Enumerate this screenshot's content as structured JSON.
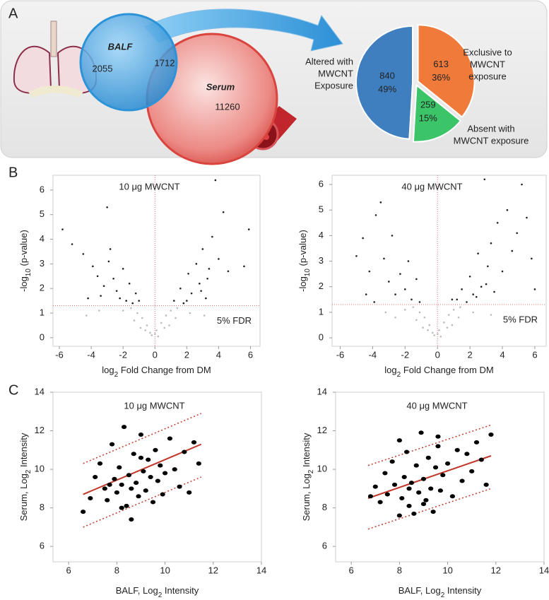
{
  "panel_labels": [
    "A",
    "B",
    "C"
  ],
  "chart_data": [
    {
      "type": "venn",
      "sets": [
        {
          "name": "BALF",
          "value": 2055,
          "color": "#2d93d8"
        },
        {
          "name": "Serum",
          "value": 11260,
          "color": "#d9443e"
        }
      ],
      "intersection": 1712
    },
    {
      "type": "pie",
      "categories": [
        [
          "Altered with",
          "MWCNT",
          "Exposure"
        ],
        [
          "Exclusive to",
          "MWCNT",
          "exposure"
        ],
        [
          "Absent with",
          "MWCNT exposure"
        ]
      ],
      "values": [
        840,
        613,
        259
      ],
      "percent_labels": [
        "49%",
        "36%",
        "15%"
      ],
      "colors": [
        "#3f7fc0",
        "#f07a3a",
        "#3cc468"
      ]
    },
    {
      "type": "volcano",
      "title": "10 μg MWCNT",
      "xlabel": [
        "log",
        "2",
        " Fold Change from DM"
      ],
      "ylabel": [
        "-log",
        "10",
        " (p-value)"
      ],
      "xlim": [
        -6.4,
        6.6
      ],
      "ylim": [
        -0.35,
        6.6
      ],
      "xticks": [
        -6,
        -4,
        -2,
        0,
        2,
        4,
        6
      ],
      "yticks": [
        0,
        1,
        2,
        3,
        4,
        5,
        6
      ],
      "threshold": {
        "y": 1.3,
        "label": "5% FDR"
      },
      "vline": 0,
      "series": [
        {
          "color": "#222222",
          "x": [
            -5.8,
            -5.2,
            -4.5,
            -3.9,
            -3.6,
            -3.2,
            -3.0,
            -2.8,
            -2.6,
            -2.4,
            -2.2,
            -2.0,
            -1.8,
            -1.6,
            -1.4,
            -1.2,
            -3.4,
            -2.9,
            -4.2,
            -1.0,
            1.2,
            1.6,
            1.8,
            2.1,
            2.3,
            2.6,
            2.8,
            3.0,
            3.2,
            3.4,
            3.6,
            3.8,
            4.0,
            4.3,
            4.6,
            5.6,
            5.9,
            2.0,
            2.9,
            3.3
          ],
          "y": [
            4.4,
            3.8,
            3.4,
            2.9,
            2.5,
            2.1,
            5.3,
            3.6,
            2.4,
            1.9,
            1.6,
            2.8,
            1.5,
            2.2,
            1.4,
            1.8,
            1.7,
            3.1,
            1.6,
            1.5,
            1.5,
            2.0,
            1.4,
            2.6,
            1.8,
            3.0,
            2.2,
            3.6,
            1.6,
            2.8,
            4.1,
            6.4,
            3.2,
            5.1,
            2.7,
            2.9,
            4.4,
            1.5,
            1.9,
            2.4
          ]
        },
        {
          "color": "#bbbbbb",
          "x": [
            -0.2,
            0.1,
            -0.5,
            0.4,
            -0.8,
            0.7,
            -1.1,
            1.0,
            -0.3,
            0.2,
            -1.5,
            1.4,
            -0.6,
            0.6,
            -2.0,
            2.2,
            -3.5,
            3.1,
            0.0,
            -0.9,
            0.9,
            -1.3,
            1.3,
            -4.3
          ],
          "y": [
            0.1,
            0.3,
            0.5,
            0.6,
            0.8,
            0.9,
            1.0,
            1.1,
            0.2,
            0.05,
            1.2,
            1.2,
            0.3,
            0.4,
            1.1,
            1.0,
            1.1,
            0.9,
            0.15,
            0.4,
            0.5,
            0.7,
            0.8,
            0.9
          ]
        }
      ]
    },
    {
      "type": "volcano",
      "title": "40 μg MWCNT",
      "xlabel": [
        "log",
        "2",
        " Fold Change from DM"
      ],
      "ylabel": [
        "-log",
        "10",
        " (p-value)"
      ],
      "xlim": [
        -6.5,
        6.7
      ],
      "ylim": [
        -0.33,
        6.36
      ],
      "xticks": [
        -6,
        -4,
        -2,
        0,
        2,
        4,
        6
      ],
      "yticks": [
        0,
        1,
        2,
        3,
        4,
        5,
        6
      ],
      "threshold": {
        "y": 1.3,
        "label": "5% FDR"
      },
      "vline": 0,
      "series": [
        {
          "color": "#222222",
          "x": [
            -5.0,
            -4.6,
            -4.2,
            -3.8,
            -3.5,
            -3.3,
            -3.0,
            -2.8,
            -2.6,
            -2.3,
            -2.0,
            -1.8,
            -1.6,
            -1.3,
            -1.1,
            -4.4,
            -3.9,
            1.2,
            1.5,
            1.8,
            2.0,
            2.2,
            2.5,
            2.7,
            2.9,
            3.1,
            3.3,
            3.5,
            3.7,
            4.0,
            4.3,
            4.6,
            4.9,
            5.2,
            5.5,
            5.8,
            6.0,
            2.4,
            3.0,
            0.9
          ],
          "y": [
            3.2,
            3.9,
            2.6,
            4.8,
            5.3,
            3.1,
            2.2,
            4.0,
            1.7,
            2.5,
            1.9,
            3.0,
            1.5,
            2.3,
            1.4,
            1.7,
            1.4,
            1.5,
            1.9,
            1.4,
            2.4,
            1.7,
            3.3,
            2.0,
            6.2,
            2.8,
            3.7,
            1.8,
            4.5,
            2.6,
            5.0,
            3.4,
            4.1,
            6.0,
            4.7,
            3.1,
            1.9,
            1.6,
            2.1,
            1.5
          ]
        },
        {
          "color": "#bbbbbb",
          "x": [
            -0.2,
            0.1,
            -0.5,
            0.4,
            -0.8,
            0.7,
            -1.1,
            1.0,
            -0.3,
            0.2,
            -1.5,
            1.4,
            -0.6,
            0.6,
            -2.0,
            2.2,
            -3.2,
            3.3,
            0.0,
            -0.9,
            0.9,
            -1.3,
            1.3,
            -2.6
          ],
          "y": [
            0.1,
            0.3,
            0.5,
            0.6,
            0.8,
            0.9,
            1.0,
            1.1,
            0.2,
            0.05,
            1.2,
            1.2,
            0.3,
            0.4,
            1.1,
            1.0,
            1.0,
            0.9,
            0.15,
            0.4,
            0.5,
            0.7,
            0.8,
            0.8
          ]
        }
      ]
    },
    {
      "type": "scatter",
      "title": "10 μg MWCNT",
      "xlabel": [
        "BALF, Log",
        "2",
        " Intensity"
      ],
      "ylabel": [
        "Serum, Log",
        "2",
        " Intensity"
      ],
      "xlim": [
        5.35,
        14
      ],
      "ylim": [
        5.2,
        14
      ],
      "xticks": [
        6,
        8,
        10,
        12,
        14
      ],
      "yticks": [
        6,
        8,
        10,
        12,
        14
      ],
      "series": [
        {
          "color": "#000000",
          "x": [
            6.6,
            6.9,
            7.1,
            7.3,
            7.5,
            7.6,
            7.8,
            7.9,
            8.0,
            8.1,
            8.2,
            8.3,
            8.4,
            8.5,
            8.6,
            8.7,
            8.8,
            8.9,
            9.0,
            9.1,
            9.2,
            9.3,
            9.4,
            9.5,
            9.6,
            9.7,
            9.8,
            9.9,
            10.0,
            10.2,
            10.4,
            10.6,
            10.8,
            11.0,
            11.2,
            11.4,
            8.6,
            9.0,
            8.2,
            7.7
          ],
          "y": [
            7.8,
            8.5,
            9.6,
            10.3,
            9.0,
            8.4,
            11.3,
            9.5,
            8.8,
            10.1,
            9.2,
            12.2,
            8.1,
            9.7,
            7.4,
            10.8,
            9.3,
            8.6,
            11.8,
            9.9,
            8.9,
            10.5,
            9.6,
            8.3,
            11.0,
            9.4,
            10.2,
            8.7,
            9.8,
            11.6,
            10.0,
            9.1,
            10.9,
            8.8,
            11.4,
            10.3,
            9.0,
            10.6,
            8.0,
            9.2
          ]
        }
      ],
      "lines": [
        {
          "x": [
            6.6,
            11.5
          ],
          "y": [
            8.7,
            11.3
          ],
          "dashed": false,
          "color": "#c0392b"
        },
        {
          "x": [
            6.6,
            11.5
          ],
          "y": [
            10.3,
            12.9
          ],
          "dashed": true,
          "color": "#c0392b"
        },
        {
          "x": [
            6.6,
            11.5
          ],
          "y": [
            7.0,
            9.6
          ],
          "dashed": true,
          "color": "#c0392b"
        }
      ]
    },
    {
      "type": "scatter",
      "title": "40 μg MWCNT",
      "xlabel": [
        "BALF, Log",
        "2",
        " Intensity"
      ],
      "ylabel": [
        "Serum, Log",
        "2",
        " Intensity"
      ],
      "xlim": [
        5.35,
        14
      ],
      "ylim": [
        5.2,
        14
      ],
      "xticks": [
        6,
        8,
        10,
        12,
        14
      ],
      "yticks": [
        6,
        8,
        10,
        12,
        14
      ],
      "series": [
        {
          "color": "#000000",
          "x": [
            6.8,
            7.0,
            7.2,
            7.4,
            7.5,
            7.7,
            7.8,
            8.0,
            8.1,
            8.2,
            8.3,
            8.4,
            8.5,
            8.6,
            8.7,
            8.8,
            8.9,
            9.0,
            9.1,
            9.2,
            9.3,
            9.4,
            9.5,
            9.6,
            9.7,
            9.8,
            10.0,
            10.2,
            10.4,
            10.6,
            10.8,
            11.0,
            11.2,
            11.4,
            11.6,
            11.8,
            8.4,
            9.0,
            8.0,
            9.6
          ],
          "y": [
            8.6,
            9.1,
            8.3,
            9.8,
            8.7,
            10.4,
            9.2,
            11.5,
            8.5,
            9.6,
            10.9,
            8.1,
            9.3,
            7.7,
            10.2,
            8.8,
            11.9,
            9.5,
            8.4,
            10.6,
            9.0,
            7.8,
            10.1,
            11.7,
            8.9,
            9.7,
            10.3,
            8.6,
            11.0,
            9.4,
            10.8,
            9.9,
            11.4,
            10.5,
            9.2,
            11.8,
            9.0,
            8.2,
            7.6,
            11.2
          ]
        }
      ],
      "lines": [
        {
          "x": [
            6.7,
            11.8
          ],
          "y": [
            8.5,
            10.7
          ],
          "dashed": false,
          "color": "#c0392b"
        },
        {
          "x": [
            6.7,
            11.8
          ],
          "y": [
            10.2,
            12.3
          ],
          "dashed": true,
          "color": "#c0392b"
        },
        {
          "x": [
            6.7,
            11.8
          ],
          "y": [
            6.9,
            9.0
          ],
          "dashed": true,
          "color": "#c0392b"
        }
      ]
    }
  ]
}
